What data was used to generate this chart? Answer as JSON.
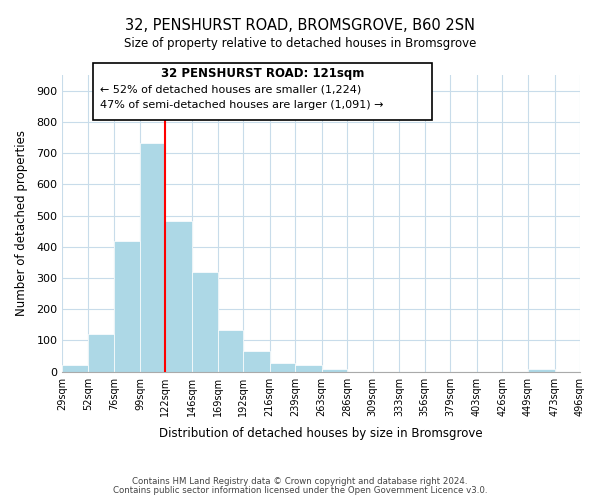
{
  "title": "32, PENSHURST ROAD, BROMSGROVE, B60 2SN",
  "subtitle": "Size of property relative to detached houses in Bromsgrove",
  "xlabel": "Distribution of detached houses by size in Bromsgrove",
  "ylabel": "Number of detached properties",
  "bar_edges": [
    29,
    52,
    76,
    99,
    122,
    146,
    169,
    192,
    216,
    239,
    263,
    286,
    309,
    333,
    356,
    379,
    403,
    426,
    449,
    473,
    496
  ],
  "bar_heights": [
    22,
    122,
    420,
    733,
    483,
    318,
    133,
    65,
    28,
    22,
    10,
    0,
    0,
    0,
    0,
    0,
    0,
    0,
    8,
    0
  ],
  "bar_color": "#add8e6",
  "bar_edgecolor": "#add8e6",
  "vline_x": 122,
  "vline_color": "red",
  "ylim": [
    0,
    950
  ],
  "yticks": [
    0,
    100,
    200,
    300,
    400,
    500,
    600,
    700,
    800,
    900
  ],
  "annotation_title": "32 PENSHURST ROAD: 121sqm",
  "annotation_line1": "← 52% of detached houses are smaller (1,224)",
  "annotation_line2": "47% of semi-detached houses are larger (1,091) →",
  "footer1": "Contains HM Land Registry data © Crown copyright and database right 2024.",
  "footer2": "Contains public sector information licensed under the Open Government Licence v3.0.",
  "background_color": "#ffffff",
  "grid_color": "#c8dcea"
}
